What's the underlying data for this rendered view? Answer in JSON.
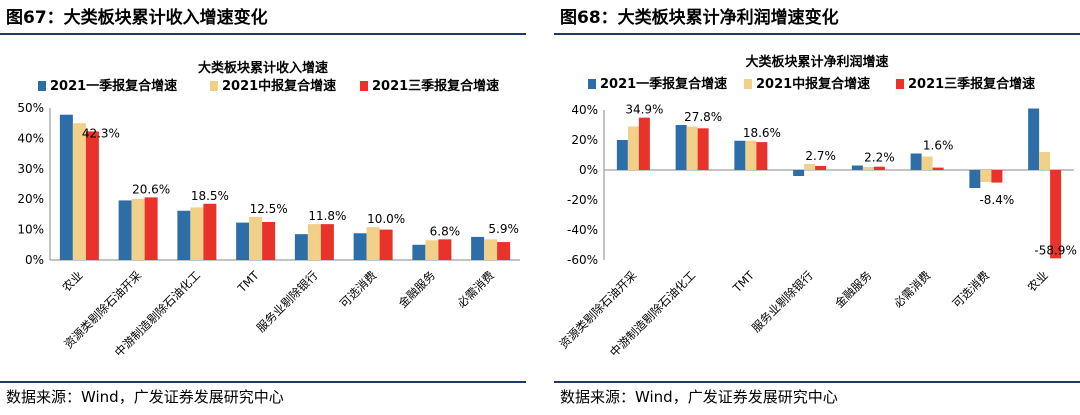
{
  "left": {
    "fig_title": "图67：大类板块累计收入增速变化",
    "source": "数据来源：Wind，广发证券发展研究中心"
  },
  "right": {
    "fig_title": "图68：大类板块累计净利润增速变化",
    "source": "数据来源：Wind，广发证券发展研究中心"
  },
  "chart_data": [
    {
      "type": "bar",
      "title": "大类板块累计收入增速",
      "categories": [
        "农业",
        "资源类剔除石油开采",
        "中游制造剔除石油化工",
        "TMT",
        "服务业剔除银行",
        "可选消费",
        "金融服务",
        "必需消费"
      ],
      "series": [
        {
          "name": "2021一季报复合增速",
          "color": "#2e6ea8",
          "values": [
            47.8,
            19.6,
            16.2,
            12.3,
            8.5,
            8.8,
            5.0,
            7.6
          ]
        },
        {
          "name": "2021中报复合增速",
          "color": "#f1d18a",
          "values": [
            45.0,
            20.1,
            17.3,
            14.2,
            11.8,
            10.8,
            6.5,
            6.8
          ]
        },
        {
          "name": "2021三季报复合增速",
          "color": "#e8322a",
          "values": [
            42.3,
            20.6,
            18.5,
            12.5,
            11.8,
            10.0,
            6.8,
            5.9
          ]
        }
      ],
      "data_labels": [
        "42.3%",
        "20.6%",
        "18.5%",
        "12.5%",
        "11.8%",
        "10.0%",
        "6.8%",
        "5.9%"
      ],
      "yticks": [
        "50%",
        "40%",
        "30%",
        "20%",
        "10%",
        "0%"
      ],
      "ylim": [
        0,
        50
      ],
      "legend_position": "top",
      "grid": false
    },
    {
      "type": "bar",
      "title": "大类板块累计净利润增速",
      "categories": [
        "资源类剔除石油开采",
        "中游制造剔除石油化工",
        "TMT",
        "服务业剔除银行",
        "金融服务",
        "必需消费",
        "可选消费",
        "农业"
      ],
      "series": [
        {
          "name": "2021一季报复合增速",
          "color": "#2e6ea8",
          "values": [
            20.0,
            30.0,
            19.5,
            -4.0,
            3.0,
            11.0,
            -12.0,
            41.0
          ]
        },
        {
          "name": "2021中报复合增速",
          "color": "#f1d18a",
          "values": [
            29.0,
            29.0,
            19.5,
            4.0,
            2.0,
            9.0,
            -8.0,
            12.0
          ]
        },
        {
          "name": "2021三季报复合增速",
          "color": "#e8322a",
          "values": [
            34.9,
            27.8,
            18.6,
            2.7,
            2.2,
            1.6,
            -8.4,
            -58.9
          ]
        }
      ],
      "data_labels": [
        "34.9%",
        "27.8%",
        "18.6%",
        "2.7%",
        "2.2%",
        "1.6%",
        "-8.4%",
        "-58.9%"
      ],
      "yticks": [
        "40%",
        "20%",
        "0%",
        "-20%",
        "-40%",
        "-60%"
      ],
      "ylim": [
        -60,
        40
      ],
      "legend_position": "top",
      "grid": false
    }
  ]
}
